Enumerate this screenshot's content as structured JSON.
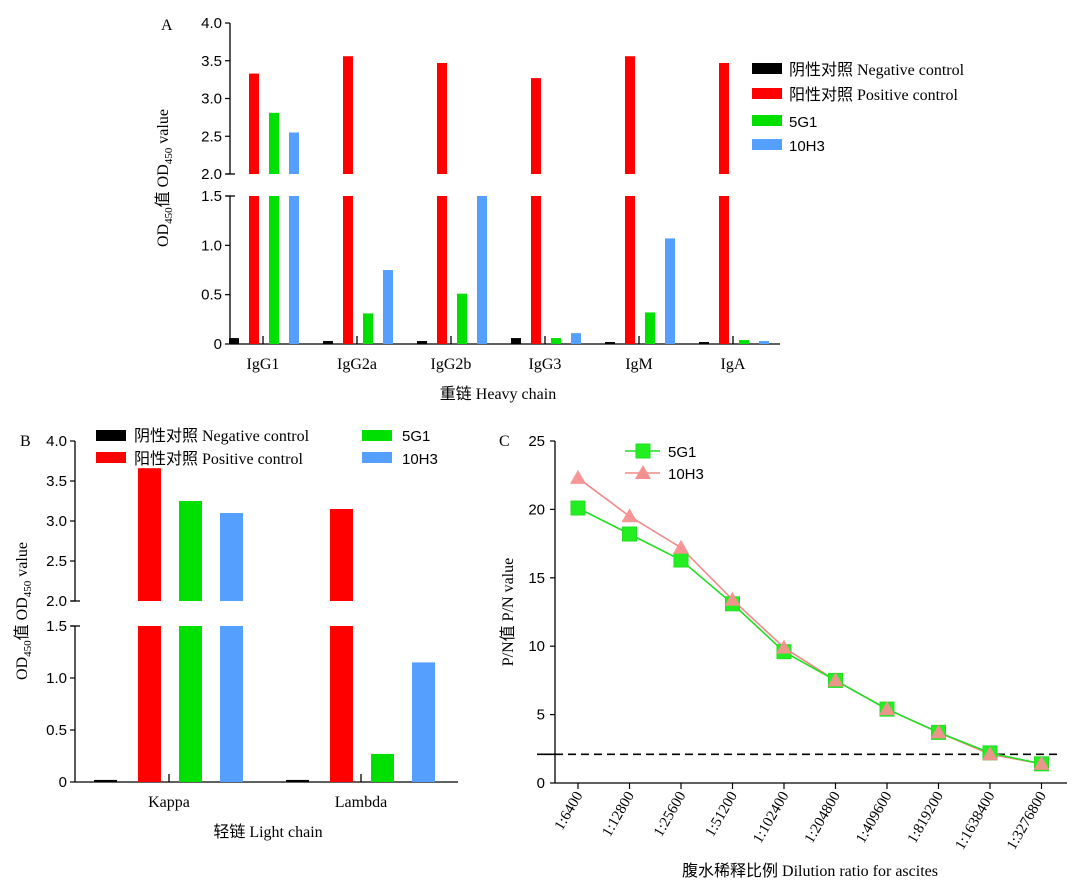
{
  "colors": {
    "negative": "#000000",
    "positive": "#ff0000",
    "g5": "#00e000",
    "h10": "#55a0ff",
    "line5G1": "#22dd22",
    "line10H3": "#f08a8a",
    "marker5G1": "#22ee22",
    "marker10H3": "#f59090"
  },
  "chart_data": [
    {
      "panel": "A",
      "type": "bar",
      "categories": [
        "IgG1",
        "IgG2a",
        "IgG2b",
        "IgG3",
        "IgM",
        "IgA"
      ],
      "series": [
        {
          "name": "阴性对照 Negative control",
          "key": "negative",
          "values": [
            0.06,
            0.03,
            0.03,
            0.06,
            0.02,
            0.02
          ]
        },
        {
          "name": "阳性对照 Positive control",
          "key": "positive",
          "values": [
            3.33,
            3.56,
            3.47,
            3.27,
            3.56,
            3.47
          ]
        },
        {
          "name": "5G1",
          "key": "g5",
          "values": [
            2.81,
            0.31,
            0.51,
            0.06,
            0.32,
            0.04
          ]
        },
        {
          "name": "10H3",
          "key": "h10",
          "values": [
            2.55,
            0.75,
            1.5,
            0.11,
            1.07,
            0.03
          ]
        }
      ],
      "ylabel_cn": "OD",
      "ylabel_sub": "450",
      "ylabel_rest": "值 OD",
      "ylabel_sub2": "450",
      "ylabel_tail": " value",
      "xlabel": "重链 Heavy chain",
      "ylim_lower": [
        0,
        1.5
      ],
      "ylim_upper": [
        2.0,
        4.0
      ],
      "yticks_lower": [
        "0",
        "0.5",
        "1.0",
        "1.5"
      ],
      "yticks_upper": [
        "2.0",
        "2.5",
        "3.0",
        "3.5",
        "4.0"
      ],
      "legend": "top-right"
    },
    {
      "panel": "B",
      "type": "bar",
      "categories": [
        "Kappa",
        "Lambda"
      ],
      "series": [
        {
          "name": "阴性对照 Negative control",
          "key": "negative",
          "values": [
            0.02,
            0.02
          ]
        },
        {
          "name": "阳性对照 Positive control",
          "key": "positive",
          "values": [
            3.66,
            3.15
          ]
        },
        {
          "name": "5G1",
          "key": "g5",
          "values": [
            3.25,
            0.27
          ]
        },
        {
          "name": "10H3",
          "key": "h10",
          "values": [
            3.1,
            1.15
          ]
        }
      ],
      "ylabel_cn": "OD",
      "ylabel_sub": "450",
      "ylabel_rest": "值 OD",
      "ylabel_sub2": "450",
      "ylabel_tail": " value",
      "xlabel": "轻链 Light chain",
      "ylim_lower": [
        0,
        1.5
      ],
      "ylim_upper": [
        2.0,
        4.0
      ],
      "yticks_lower": [
        "0",
        "0.5",
        "1.0",
        "1.5"
      ],
      "yticks_upper": [
        "2.0",
        "2.5",
        "3.0",
        "3.5",
        "4.0"
      ],
      "legend": "top"
    },
    {
      "panel": "C",
      "type": "line",
      "categories": [
        "1:6400",
        "1:12800",
        "1:25600",
        "1:51200",
        "1:102400",
        "1:204800",
        "1:409600",
        "1:819200",
        "1:1638400",
        "1:3276800"
      ],
      "series": [
        {
          "name": "5G1",
          "key": "line5G1",
          "marker": "square",
          "values": [
            20.1,
            18.2,
            16.3,
            13.1,
            9.6,
            7.5,
            5.4,
            3.7,
            2.2,
            1.4
          ]
        },
        {
          "name": "10H3",
          "key": "line10H3",
          "marker": "triangle",
          "values": [
            22.3,
            19.5,
            17.2,
            13.4,
            9.9,
            7.5,
            5.4,
            3.7,
            2.1,
            1.4
          ]
        }
      ],
      "threshold": 2.1,
      "ylabel": "P/N值 P/N value",
      "xlabel": "腹水稀释比例 Dilution ratio for ascites",
      "ylim": [
        0,
        25
      ],
      "yticks": [
        "0",
        "5",
        "10",
        "15",
        "20",
        "25"
      ],
      "legend": "top-left"
    }
  ]
}
